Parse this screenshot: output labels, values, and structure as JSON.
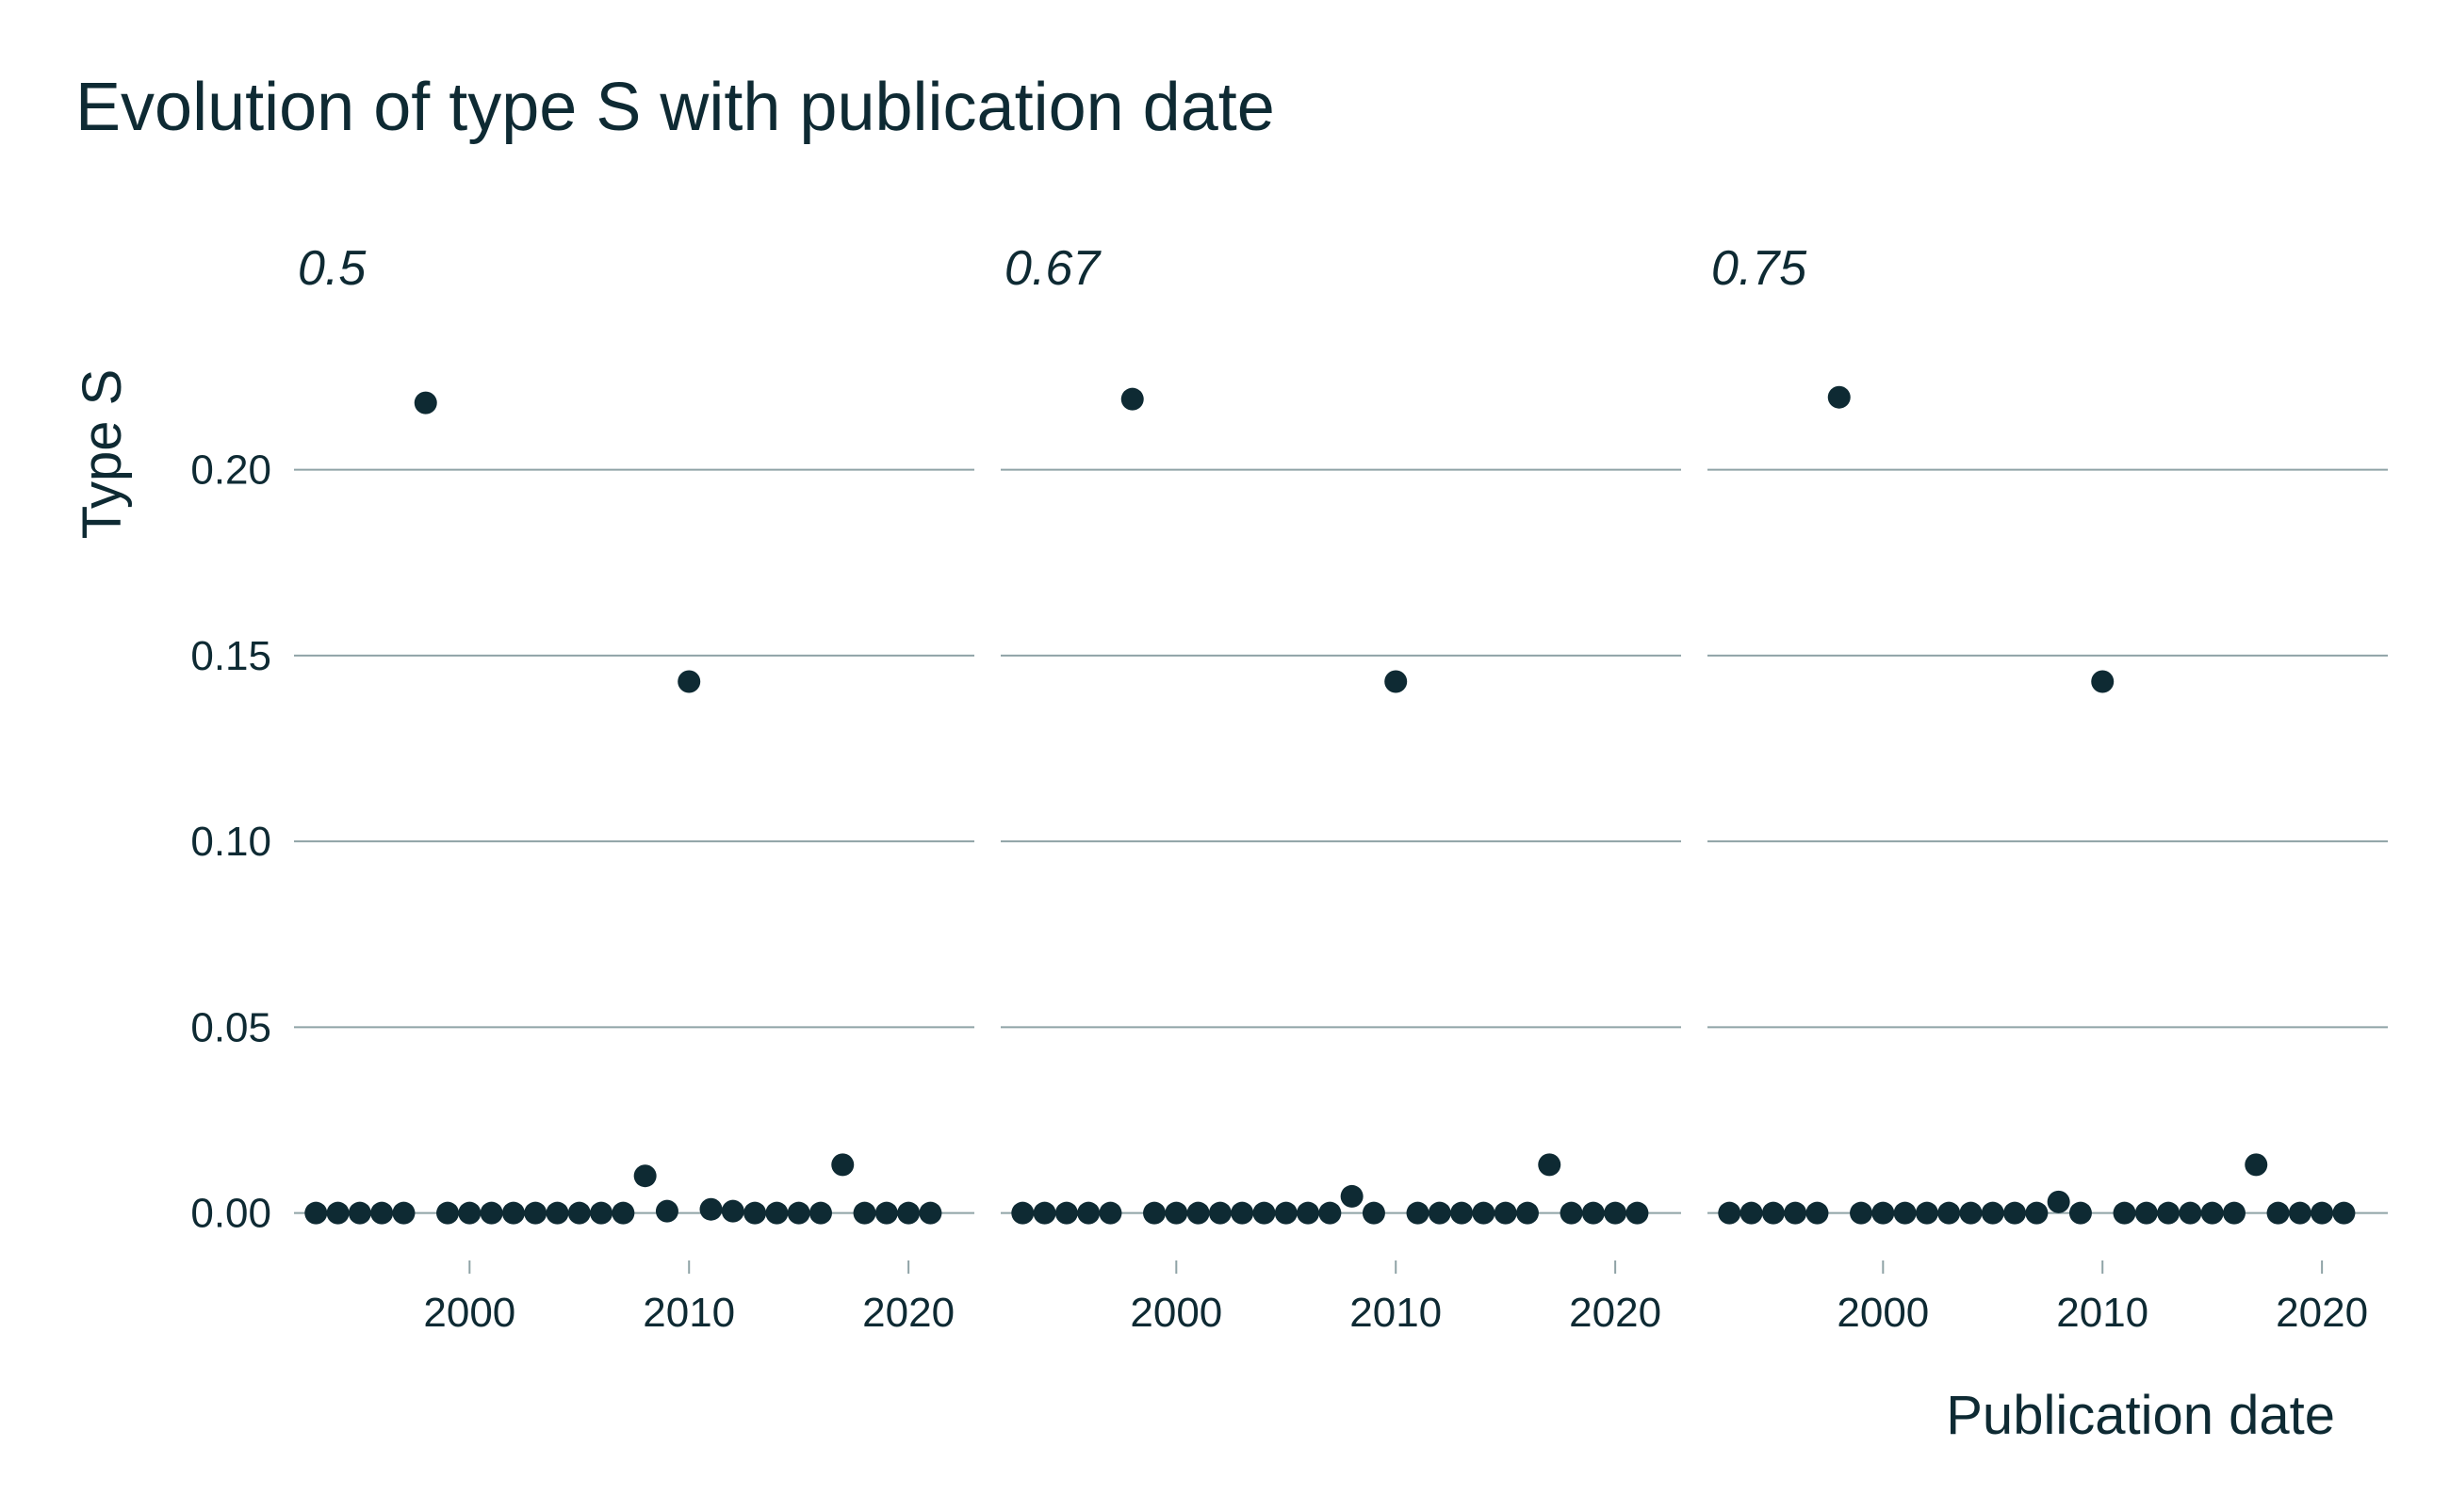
{
  "chart_data": {
    "type": "scatter",
    "title": "Evolution of type S with publication date",
    "xlabel": "Publication date",
    "ylabel": "Type S",
    "xlim": [
      1992,
      2023
    ],
    "ylim": [
      -0.012,
      0.225
    ],
    "x_ticks": [
      2000,
      2010,
      2020
    ],
    "y_ticks": [
      0.0,
      0.05,
      0.1,
      0.15,
      0.2
    ],
    "y_tick_labels": [
      "0.00",
      "0.05",
      "0.10",
      "0.15",
      "0.20"
    ],
    "grid": true,
    "facets": [
      {
        "label": "0.5",
        "points": [
          [
            1993,
            0
          ],
          [
            1994,
            0
          ],
          [
            1995,
            0
          ],
          [
            1996,
            0
          ],
          [
            1997,
            0
          ],
          [
            1998,
            0.218
          ],
          [
            1999,
            0
          ],
          [
            2000,
            0
          ],
          [
            2001,
            0
          ],
          [
            2002,
            0
          ],
          [
            2003,
            0
          ],
          [
            2004,
            0
          ],
          [
            2005,
            0
          ],
          [
            2006,
            0
          ],
          [
            2007,
            0
          ],
          [
            2008,
            0.01
          ],
          [
            2009,
            0.0005
          ],
          [
            2010,
            0.143
          ],
          [
            2011,
            0.001
          ],
          [
            2012,
            0.0005
          ],
          [
            2013,
            0
          ],
          [
            2014,
            0
          ],
          [
            2015,
            0
          ],
          [
            2016,
            0
          ],
          [
            2017,
            0.013
          ],
          [
            2018,
            0
          ],
          [
            2019,
            0
          ],
          [
            2020,
            0
          ],
          [
            2021,
            0
          ]
        ]
      },
      {
        "label": "0.67",
        "points": [
          [
            1993,
            0
          ],
          [
            1994,
            0
          ],
          [
            1995,
            0
          ],
          [
            1996,
            0
          ],
          [
            1997,
            0
          ],
          [
            1998,
            0.219
          ],
          [
            1999,
            0
          ],
          [
            2000,
            0
          ],
          [
            2001,
            0
          ],
          [
            2002,
            0
          ],
          [
            2003,
            0
          ],
          [
            2004,
            0
          ],
          [
            2005,
            0
          ],
          [
            2006,
            0
          ],
          [
            2007,
            0
          ],
          [
            2008,
            0.0045
          ],
          [
            2009,
            0
          ],
          [
            2010,
            0.143
          ],
          [
            2011,
            0
          ],
          [
            2012,
            0
          ],
          [
            2013,
            0
          ],
          [
            2014,
            0
          ],
          [
            2015,
            0
          ],
          [
            2016,
            0
          ],
          [
            2017,
            0.013
          ],
          [
            2018,
            0
          ],
          [
            2019,
            0
          ],
          [
            2020,
            0
          ],
          [
            2021,
            0
          ]
        ]
      },
      {
        "label": "0.75",
        "points": [
          [
            1993,
            0
          ],
          [
            1994,
            0
          ],
          [
            1995,
            0
          ],
          [
            1996,
            0
          ],
          [
            1997,
            0
          ],
          [
            1998,
            0.2195
          ],
          [
            1999,
            0
          ],
          [
            2000,
            0
          ],
          [
            2001,
            0
          ],
          [
            2002,
            0
          ],
          [
            2003,
            0
          ],
          [
            2004,
            0
          ],
          [
            2005,
            0
          ],
          [
            2006,
            0
          ],
          [
            2007,
            0
          ],
          [
            2008,
            0.003
          ],
          [
            2009,
            0
          ],
          [
            2010,
            0.143
          ],
          [
            2011,
            0
          ],
          [
            2012,
            0
          ],
          [
            2013,
            0
          ],
          [
            2014,
            0
          ],
          [
            2015,
            0
          ],
          [
            2016,
            0
          ],
          [
            2017,
            0.013
          ],
          [
            2018,
            0
          ],
          [
            2019,
            0
          ],
          [
            2020,
            0
          ],
          [
            2021,
            0
          ]
        ]
      }
    ]
  },
  "colors": {
    "text": "#0e2a33",
    "points": "#0e2a33",
    "grid": "#8fa3a6",
    "background": "#ffffff"
  }
}
